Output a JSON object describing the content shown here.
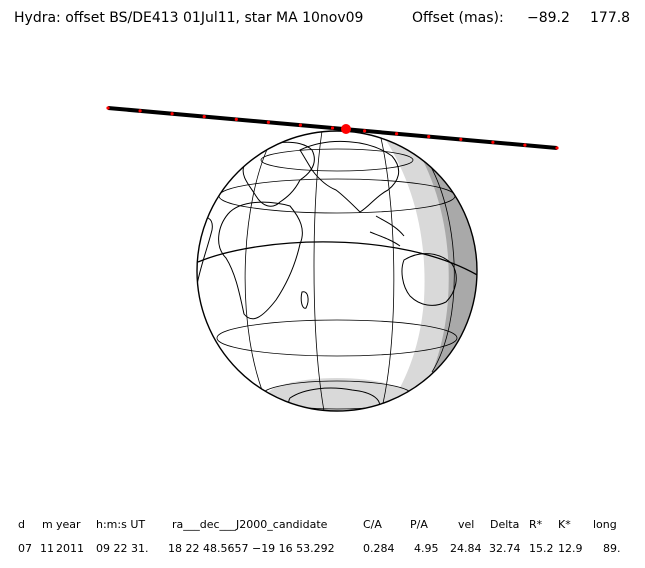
{
  "header": {
    "text": "Hydra: offset BS/DE413 01Jul11, star MA 10nov09",
    "offset_label": "Offset (mas):",
    "offset_x": "−89.2",
    "offset_y": "177.8"
  },
  "table": {
    "headers": [
      "d",
      "m",
      "year",
      "h:m:s UT",
      "ra___dec___J2000_candidate",
      "C/A",
      "P/A",
      "vel",
      "Delta",
      "R*",
      "K*",
      "long"
    ],
    "values": [
      "07",
      "11",
      "2011",
      "09 22 31.",
      "18 22 48.5657 −19 16 53.292",
      "0.284",
      "4.95",
      "24.84",
      "32.74",
      "15.2",
      "12.9",
      "89."
    ]
  },
  "colors": {
    "track": "#000000",
    "track_marks": "#ff0000",
    "shadow_light": "#d9d9d9",
    "shadow_dark": "#a9a9a9"
  }
}
